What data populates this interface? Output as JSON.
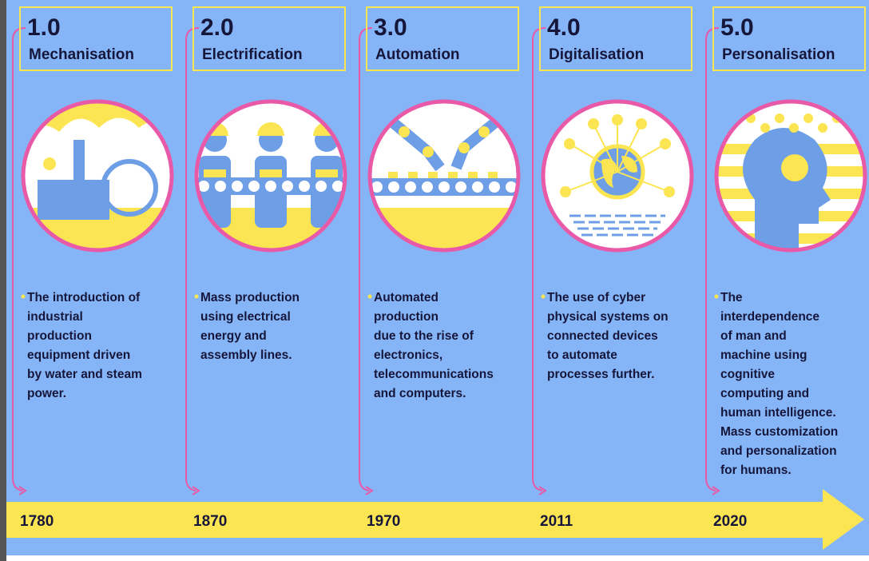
{
  "stages": [
    {
      "version": "1.0",
      "title": "Mechanisation",
      "description": [
        "The introduction of",
        "industrial",
        "production",
        "equipment driven",
        "by water and steam",
        "power."
      ],
      "year": "1780"
    },
    {
      "version": "2.0",
      "title": "Electrification",
      "description": [
        "Mass production",
        "using electrical",
        "energy and",
        "assembly lines."
      ],
      "year": "1870"
    },
    {
      "version": "3.0",
      "title": "Automation",
      "description": [
        "Automated",
        "production",
        "due to the rise of",
        "electronics,",
        "telecommunications",
        "and computers."
      ],
      "year": "1970"
    },
    {
      "version": "4.0",
      "title": "Digitalisation",
      "description": [
        "The use of cyber",
        "physical systems on",
        "connected devices",
        "to automate",
        "processes further."
      ],
      "year": "2011"
    },
    {
      "version": "5.0",
      "title": "Personalisation",
      "description": [
        "The",
        "interdependence",
        "of man and",
        "machine using",
        "cognitive",
        "computing and",
        "human intelligence.",
        "Mass customization",
        "and personalization",
        "for humans."
      ],
      "year": "2020"
    }
  ]
}
